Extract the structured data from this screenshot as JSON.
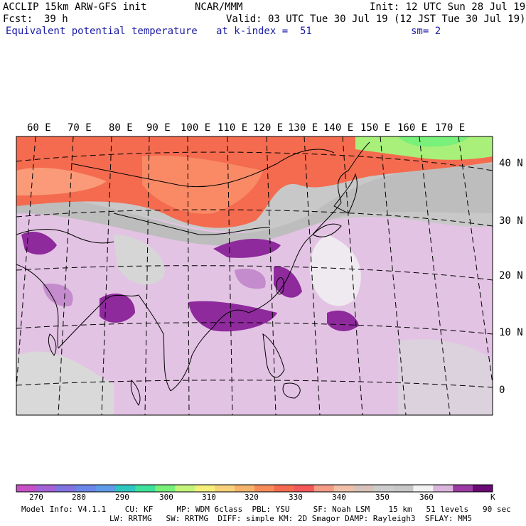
{
  "header": {
    "model": "ACCLIP 15km ARW-GFS init",
    "center": "NCAR/MMM",
    "init": "Init: 12 UTC Sun 28 Jul 19",
    "fcst_label": "Fcst:",
    "fcst_value": "39 h",
    "valid": "Valid: 03 UTC Tue 30 Jul 19 (12 JST Tue 30 Jul 19)",
    "field": "Equivalent potential temperature",
    "level": "at k-index =  51",
    "smooth": "sm= 2"
  },
  "map": {
    "lon_labels": [
      "60 E",
      "70 E",
      "80 E",
      "90 E",
      "100 E",
      "110 E",
      "120 E",
      "130 E",
      "140 E",
      "150 E",
      "160 E",
      "170 E"
    ],
    "lat_labels": [
      "40 N",
      "30 N",
      "20 N",
      "10 N",
      "0"
    ],
    "colors": {
      "hot": "#f46b4f",
      "warm": "#fa9a78",
      "purple_light": "#e3c3e4",
      "purple_mid": "#b26bc1",
      "purple_dark": "#8e2a9c",
      "gray": "#c8c8c8",
      "white": "#f4f4f4",
      "green": "#a8f07a"
    }
  },
  "colorbar": {
    "colors": [
      "#c651c6",
      "#a362d6",
      "#8274e0",
      "#6b86e8",
      "#5f9be8",
      "#2fc6c0",
      "#3ee09b",
      "#78f07a",
      "#c4f47a",
      "#f6f07a",
      "#f7d27a",
      "#f6b36b",
      "#f78c5a",
      "#f46b4f",
      "#f4585a",
      "#f59b86",
      "#f1c0a8",
      "#d7c3b9",
      "#cdcdcd",
      "#c8c8c8",
      "#f2f2f2",
      "#dbb6dc",
      "#9b3aa2",
      "#6a0a74"
    ],
    "labels": [
      "270",
      "280",
      "290",
      "300",
      "310",
      "320",
      "330",
      "340",
      "350",
      "360"
    ],
    "unit": "K"
  },
  "footer": {
    "line1": "Model Info: V4.1.1    CU: KF     MP: WDM 6class  PBL: YSU     SF: Noah LSM    15 km   51 levels   90 sec",
    "line2": "LW: RRTMG   SW: RRTMG  DIFF: simple KM: 2D Smagor DAMP: Rayleigh3  SFLAY: MM5"
  }
}
